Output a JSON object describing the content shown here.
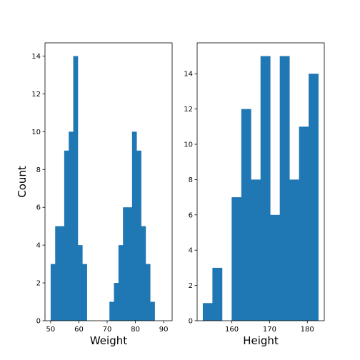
{
  "chart_data": [
    {
      "type": "bar",
      "subtype": "histogram",
      "title": "",
      "xlabel": "Weight",
      "ylabel": "Count",
      "bar_color": "#1f77b4",
      "xlim": [
        48.0,
        93.0
      ],
      "ylim": [
        0,
        14.7
      ],
      "xticks": [
        50,
        60,
        70,
        80,
        90
      ],
      "yticks": [
        0,
        2,
        4,
        6,
        8,
        10,
        12,
        14
      ],
      "bin_edges": [
        50.0,
        51.6,
        53.2,
        54.8,
        56.4,
        58.0,
        59.6,
        61.2,
        62.8,
        64.4,
        66.0,
        67.6,
        69.2,
        70.8,
        72.4,
        74.0,
        75.6,
        77.2,
        78.8,
        80.4,
        82.0,
        83.6,
        85.2,
        86.8,
        88.4,
        90.0,
        91.6
      ],
      "values": [
        3,
        5,
        5,
        9,
        10,
        14,
        4,
        3,
        0,
        0,
        0,
        0,
        0,
        1,
        2,
        4,
        6,
        6,
        10,
        9,
        5,
        3,
        1,
        0,
        0,
        0
      ],
      "grid": false
    },
    {
      "type": "bar",
      "subtype": "histogram",
      "title": "",
      "xlabel": "Height",
      "ylabel": "",
      "bar_color": "#1f77b4",
      "xlim": [
        150.8,
        184.5
      ],
      "ylim": [
        0,
        15.75
      ],
      "xticks": [
        160,
        170,
        180
      ],
      "yticks": [
        0,
        2,
        4,
        6,
        8,
        10,
        12,
        14
      ],
      "bin_edges": [
        152.3,
        154.85,
        157.4,
        159.95,
        162.5,
        165.05,
        167.6,
        170.15,
        172.7,
        175.25,
        177.8,
        180.35,
        182.9
      ],
      "values": [
        1,
        3,
        0,
        7,
        12,
        8,
        15,
        6,
        15,
        8,
        11,
        14
      ],
      "grid": false
    }
  ]
}
